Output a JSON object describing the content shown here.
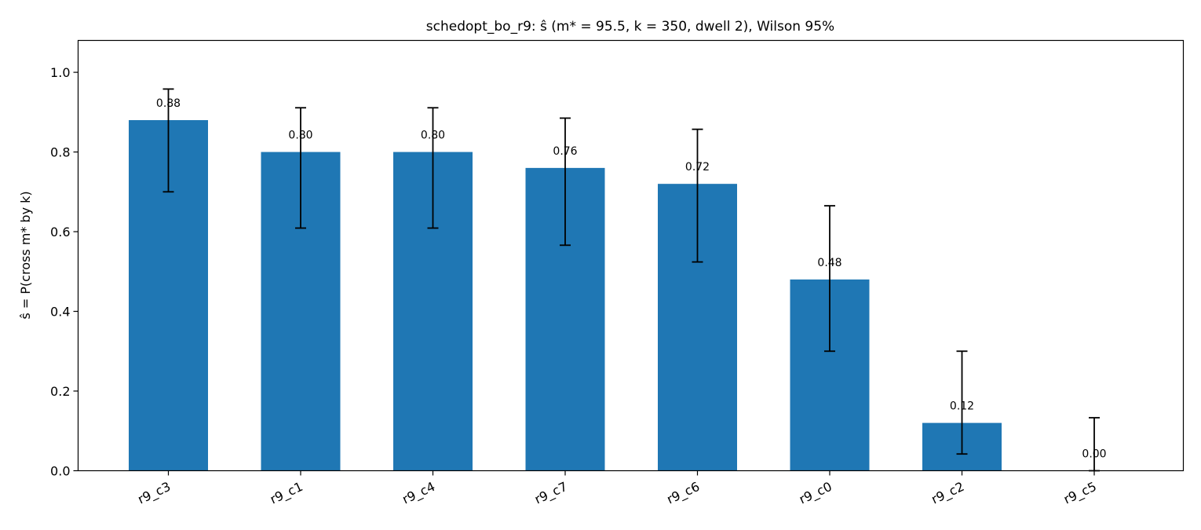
{
  "chart_data": {
    "type": "bar",
    "title": "schedopt_bo_r9: ŝ (m* = 95.5, k = 350, dwell 2), Wilson 95%",
    "xlabel": "",
    "ylabel": "ŝ = P(cross m* by k)",
    "ylim": [
      0,
      1.08
    ],
    "yticks": [
      0.0,
      0.2,
      0.4,
      0.6,
      0.8,
      1.0
    ],
    "ytick_labels": [
      "0.0",
      "0.2",
      "0.4",
      "0.6",
      "0.8",
      "1.0"
    ],
    "categories": [
      "r9_c3",
      "r9_c1",
      "r9_c4",
      "r9_c7",
      "r9_c6",
      "r9_c0",
      "r9_c2",
      "r9_c5"
    ],
    "values": [
      0.88,
      0.8,
      0.8,
      0.76,
      0.72,
      0.48,
      0.12,
      0.0
    ],
    "value_labels": [
      "0.88",
      "0.80",
      "0.80",
      "0.76",
      "0.72",
      "0.48",
      "0.12",
      "0.00"
    ],
    "ci_lower": [
      0.7,
      0.609,
      0.609,
      0.566,
      0.524,
      0.3,
      0.042,
      0.0
    ],
    "ci_upper": [
      0.958,
      0.911,
      0.911,
      0.885,
      0.857,
      0.665,
      0.3,
      0.133
    ],
    "bar_color": "#1f77b4",
    "errorbar_color": "#000000",
    "grid": false
  }
}
